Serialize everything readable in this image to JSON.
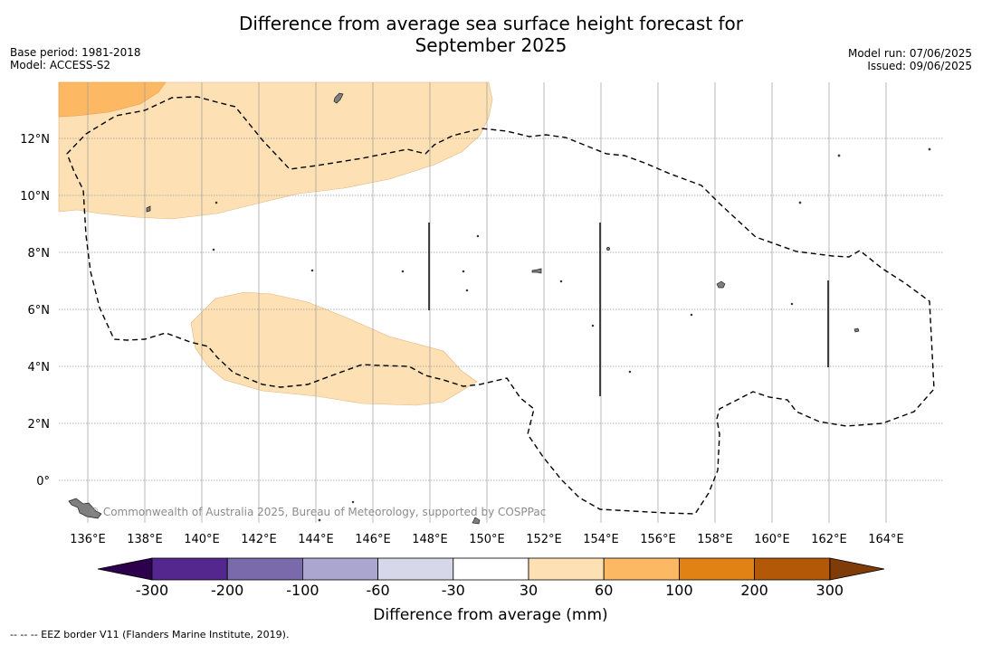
{
  "title_line1": "Difference from average sea surface height forecast for",
  "title_line2": "September 2025",
  "meta_left": [
    "Base period: 1981-2018",
    "Model: ACCESS-S2"
  ],
  "meta_right": [
    "Model run: 07/06/2025",
    "Issued: 09/06/2025"
  ],
  "copyright": "© Commonwealth of Australia 2025, Bureau of Meteorology, supported by COSPPac",
  "footnote": "--  --  -- EEZ border V11 (Flanders Marine Institute, 2019).",
  "map": {
    "lon_range": [
      135,
      166
    ],
    "lat_range": [
      -1.5,
      14
    ],
    "lon_ticks": [
      "136°E",
      "138°E",
      "140°E",
      "142°E",
      "144°E",
      "146°E",
      "148°E",
      "150°E",
      "152°E",
      "154°E",
      "156°E",
      "158°E",
      "160°E",
      "162°E",
      "164°E"
    ],
    "lat_ticks": [
      "0°",
      "2°N",
      "4°N",
      "6°N",
      "8°N",
      "10°N",
      "12°N"
    ]
  },
  "colorbar": {
    "title": "Difference from average (mm)",
    "tick_labels": [
      "-300",
      "-200",
      "-100",
      "-60",
      "-30",
      "30",
      "60",
      "100",
      "200",
      "300"
    ],
    "colors": [
      "#54278f",
      "#7b6aab",
      "#aba6d0",
      "#d6d7e9",
      "#ffffff",
      "#fde0b4",
      "#fdb863",
      "#e08214",
      "#b35806"
    ],
    "under_color": "#2d004b",
    "over_color": "#7f3b08"
  },
  "colors": {
    "anomaly_30_60": "#fde0b4",
    "anomaly_60_100": "#fdb863",
    "land": "#7f7f7f",
    "grid": "#999999"
  }
}
